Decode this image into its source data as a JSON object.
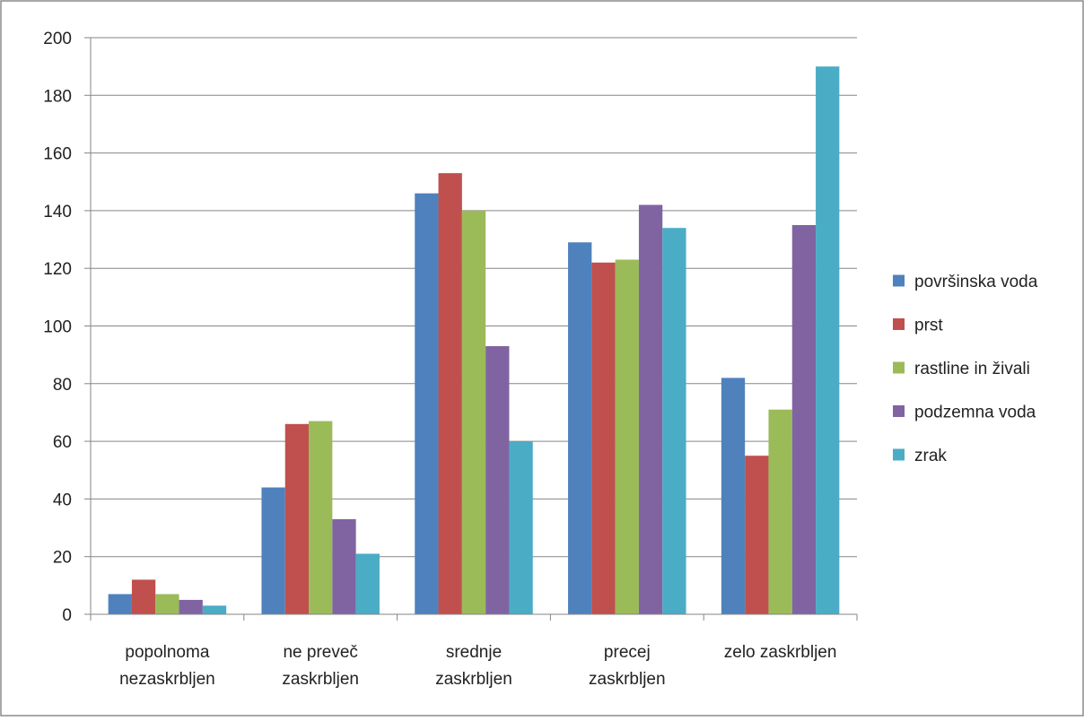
{
  "chart_data": {
    "type": "bar",
    "categories": [
      [
        "popolnoma",
        "nezaskrbljen"
      ],
      [
        "ne preveč",
        "zaskrbljen"
      ],
      [
        "srednje",
        "zaskrbljen"
      ],
      [
        "precej",
        "zaskrbljen"
      ],
      [
        "zelo zaskrbljen"
      ]
    ],
    "series": [
      {
        "name": "površinska voda",
        "color": "#4F81BD",
        "values": [
          7,
          44,
          146,
          129,
          82
        ]
      },
      {
        "name": "prst",
        "color": "#C0504D",
        "values": [
          12,
          66,
          153,
          122,
          55
        ]
      },
      {
        "name": "rastline in živali",
        "color": "#9BBB59",
        "values": [
          7,
          67,
          140,
          123,
          71
        ]
      },
      {
        "name": "podzemna voda",
        "color": "#8064A2",
        "values": [
          5,
          33,
          93,
          142,
          135
        ]
      },
      {
        "name": "zrak",
        "color": "#4BACC6",
        "values": [
          3,
          21,
          60,
          134,
          190
        ]
      }
    ],
    "ylim": [
      0,
      200
    ],
    "yticks": [
      0,
      20,
      40,
      60,
      80,
      100,
      120,
      140,
      160,
      180,
      200
    ],
    "title": "",
    "xlabel": "",
    "ylabel": "",
    "grid": "horizontal",
    "legend_position": "right"
  }
}
